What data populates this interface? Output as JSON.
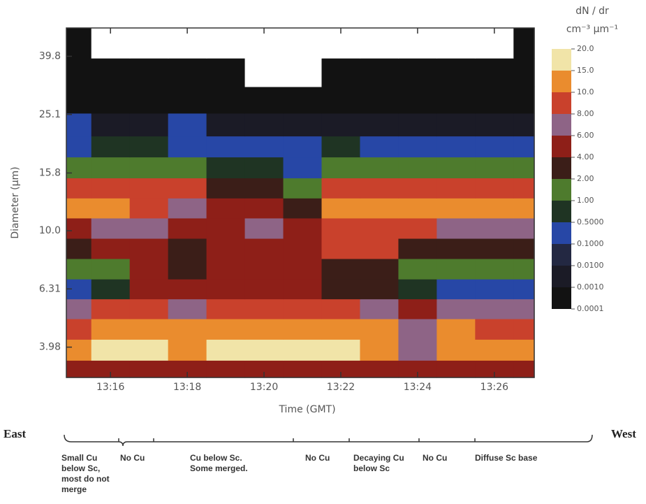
{
  "chart_data": {
    "type": "heatmap",
    "x_label": "Time (GMT)",
    "y_label": "Diameter (µm)",
    "log_y": true,
    "xlim": [
      14.85,
      27.04
    ],
    "xticks": [
      {
        "value": 16,
        "label": "13:16"
      },
      {
        "value": 18,
        "label": "13:18"
      },
      {
        "value": 20,
        "label": "13:20"
      },
      {
        "value": 22,
        "label": "13:22"
      },
      {
        "value": 24,
        "label": "13:24"
      },
      {
        "value": 26,
        "label": "13:26"
      }
    ],
    "ylim": [
      3.13,
      49.8
    ],
    "yticks": [
      3.98,
      6.31,
      {
        "value": 10,
        "label": "10.0"
      },
      15.8,
      25.1,
      39.8
    ],
    "x": [
      15,
      16,
      17,
      18,
      19,
      20,
      21,
      22,
      23,
      24,
      25,
      26,
      27
    ],
    "y": [
      3.3,
      3.9,
      4.6,
      5.4,
      6.3,
      7.4,
      8.7,
      10.2,
      12,
      14,
      16.5,
      19.5,
      23,
      28,
      35,
      44
    ],
    "z": [
      [
        5,
        5,
        5,
        5,
        5,
        5,
        5,
        5,
        5,
        5,
        5,
        5,
        5
      ],
      [
        12,
        17,
        17,
        12,
        17,
        17,
        17,
        17,
        12,
        7,
        12,
        12,
        12
      ],
      [
        9,
        12,
        12,
        12,
        12,
        12,
        12,
        12,
        12,
        7,
        12,
        9,
        9
      ],
      [
        7,
        9,
        9,
        7,
        9,
        9,
        9,
        9,
        7,
        5,
        7,
        7,
        7
      ],
      [
        0.3,
        0.7,
        5,
        5,
        5,
        5,
        5,
        3,
        3,
        0.7,
        0.3,
        0.3,
        0.3
      ],
      [
        1.5,
        1.5,
        5,
        3,
        5,
        5,
        5,
        3,
        3,
        1.5,
        1.5,
        1.5,
        1.5
      ],
      [
        3,
        5,
        5,
        3,
        5,
        5,
        5,
        9,
        9,
        3,
        3,
        3,
        3
      ],
      [
        5,
        7,
        7,
        5,
        5,
        7,
        5,
        9,
        9,
        9,
        7,
        7,
        7
      ],
      [
        12,
        12,
        9,
        7,
        5,
        5,
        3,
        12,
        12,
        12,
        12,
        12,
        12
      ],
      [
        9,
        9,
        9,
        9,
        3,
        3,
        1.5,
        9,
        9,
        9,
        9,
        9,
        9
      ],
      [
        1.5,
        1.5,
        1.5,
        1.5,
        0.7,
        0.7,
        0.3,
        1.5,
        1.5,
        1.5,
        1.5,
        1.5,
        1.5
      ],
      [
        0.3,
        0.7,
        0.7,
        0.3,
        0.3,
        0.3,
        0.3,
        0.7,
        0.3,
        0.3,
        0.3,
        0.3,
        0.3
      ],
      [
        0.3,
        0.005,
        0.005,
        0.3,
        0.005,
        0.005,
        0.005,
        0.005,
        0.005,
        0.005,
        0.005,
        0.005,
        0.005
      ],
      [
        0.0005,
        0.0005,
        0.0005,
        0.0005,
        0.0005,
        0.0005,
        0.0005,
        0.0005,
        0.0005,
        0.0005,
        0.0005,
        0.0005,
        0.0005
      ],
      [
        0.0005,
        0.0005,
        0.0005,
        0.0005,
        0.0005,
        5e-05,
        5e-05,
        0.0005,
        0.0005,
        0.0005,
        0.0005,
        0.0005,
        0.0005
      ],
      [
        0.0005,
        5e-05,
        5e-05,
        5e-05,
        5e-05,
        5e-05,
        5e-05,
        5e-05,
        5e-05,
        5e-05,
        5e-05,
        5e-05,
        0.0005
      ]
    ],
    "colorbar": {
      "title": "dN / dr",
      "units": "cm⁻³ µm⁻¹",
      "levels": [
        {
          "value": 20,
          "label": "20.0"
        },
        {
          "value": 15,
          "label": "15.0"
        },
        {
          "value": 10,
          "label": "10.0"
        },
        {
          "value": 8,
          "label": "8.00"
        },
        {
          "value": 6,
          "label": "6.00"
        },
        {
          "value": 4,
          "label": "4.00"
        },
        {
          "value": 2,
          "label": "2.00"
        },
        {
          "value": 1,
          "label": "1.00"
        },
        {
          "value": 0.5,
          "label": "0.5000"
        },
        {
          "value": 0.1,
          "label": "0.1000"
        },
        {
          "value": 0.01,
          "label": "0.0100"
        },
        {
          "value": 0.001,
          "label": "0.0010"
        },
        {
          "value": 0.0001,
          "label": "0.0001"
        }
      ],
      "colors": [
        "#f1e4a8",
        "#ea8c2e",
        "#c9412c",
        "#8e6486",
        "#8e1f18",
        "#3b1e18",
        "#4e7b2d",
        "#1f3423",
        "#2747a6",
        "#232842",
        "#1b1b26",
        "#121212"
      ]
    }
  },
  "annotations": {
    "left": "East",
    "right": "West",
    "segments": [
      [
        "Small Cu",
        "below Sc,",
        "most do not",
        "merge"
      ],
      [
        "No Cu"
      ],
      [
        "Cu below Sc.",
        "Some merged."
      ],
      [
        "No Cu"
      ],
      [
        "Decaying Cu",
        "below Sc"
      ],
      [
        "No Cu"
      ],
      [
        "Diffuse Sc base"
      ]
    ]
  }
}
